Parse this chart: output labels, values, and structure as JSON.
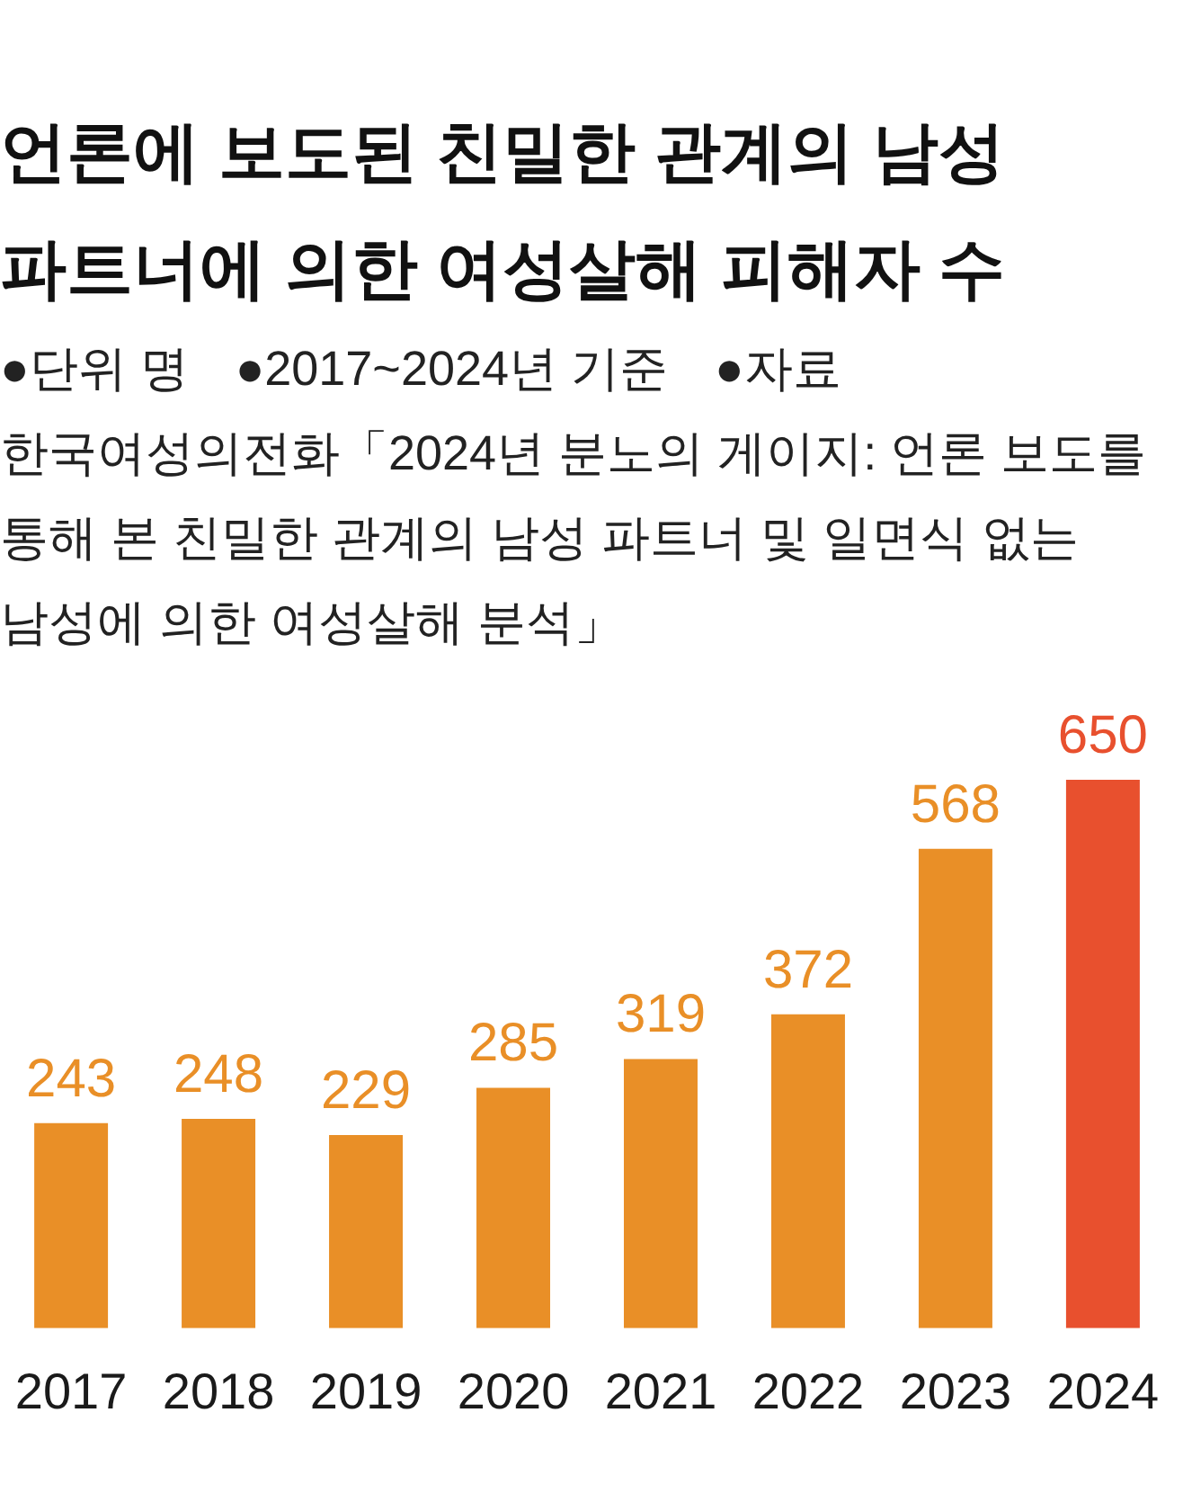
{
  "chart_data": {
    "type": "bar",
    "title": "언론에 보도된 친밀한 관계의 남성 파트너에 의한 여성살해 피해자 수",
    "annotations": [
      "●단위 명",
      "●2017~2024년 기준",
      "●자료",
      "한국여성의전화「2024년 분노의 게이지: 언론 보도를 통해 본 친밀한 관계의 남성 파트너 및 일면식 없는 남성에 의한 여성살해 분석」"
    ],
    "categories": [
      "2017",
      "2018",
      "2019",
      "2020",
      "2021",
      "2022",
      "2023",
      "2024"
    ],
    "values": [
      243,
      248,
      229,
      285,
      319,
      372,
      568,
      650
    ],
    "colors": [
      "#e98f27",
      "#e98f27",
      "#e98f27",
      "#e98f27",
      "#e98f27",
      "#e98f27",
      "#e98f27",
      "#e8502e"
    ],
    "data_labels": true,
    "tick_labels": "x"
  }
}
